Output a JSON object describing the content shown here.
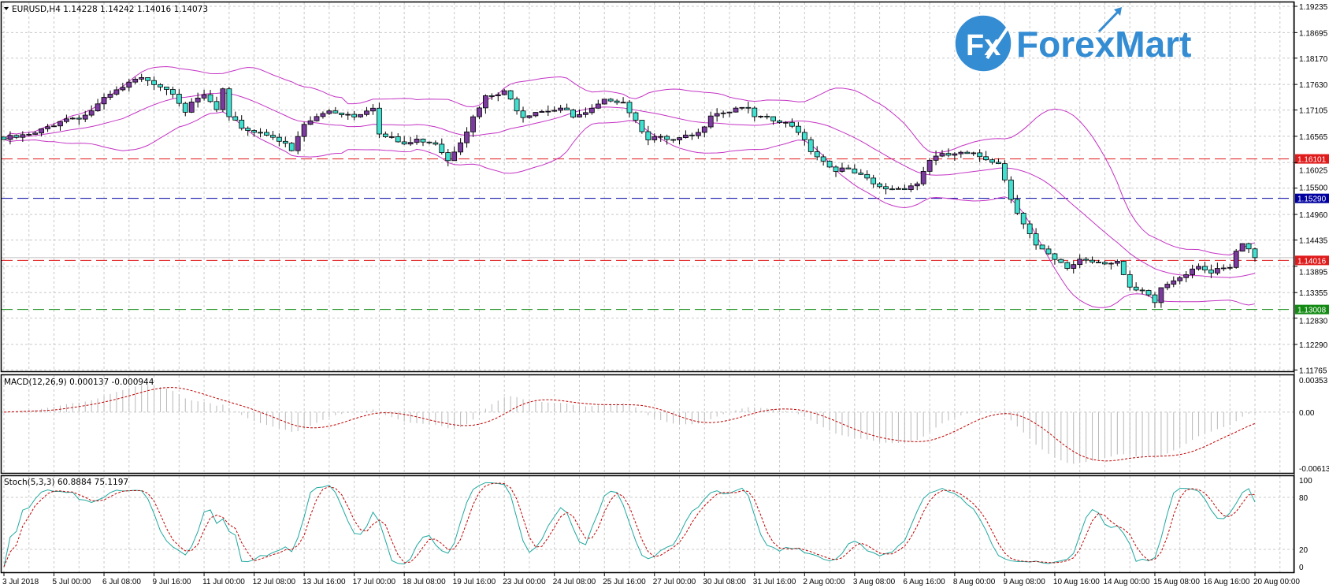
{
  "chart_data": {
    "type": "candlestick",
    "symbol_header": "EURUSD,H4  1.14228 1.14242 1.14016 1.14073",
    "price_axis_labels": [
      "1.19235",
      "1.18695",
      "1.18170",
      "1.17630",
      "1.17105",
      "1.16565",
      "1.16025",
      "1.15500",
      "1.14960",
      "1.14435",
      "1.13895",
      "1.13355",
      "1.12830",
      "1.12290",
      "1.11765"
    ],
    "price_ylim": [
      1.11765,
      1.19235
    ],
    "bar_count": 201,
    "close_waypoints": [
      [
        0,
        1.165
      ],
      [
        5,
        1.166
      ],
      [
        9,
        1.169
      ],
      [
        13,
        1.17
      ],
      [
        17,
        1.174
      ],
      [
        21,
        1.177
      ],
      [
        23,
        1.1775
      ],
      [
        27,
        1.175
      ],
      [
        29,
        1.171
      ],
      [
        32,
        1.174
      ],
      [
        34,
        1.171
      ],
      [
        35,
        1.175
      ],
      [
        36,
        1.169
      ],
      [
        39,
        1.167
      ],
      [
        43,
        1.166
      ],
      [
        46,
        1.1625
      ],
      [
        48,
        1.168
      ],
      [
        52,
        1.171
      ],
      [
        56,
        1.17
      ],
      [
        59,
        1.172
      ],
      [
        60,
        1.166
      ],
      [
        64,
        1.164
      ],
      [
        67,
        1.165
      ],
      [
        69,
        1.1645
      ],
      [
        71,
        1.161
      ],
      [
        73,
        1.165
      ],
      [
        77,
        1.1735
      ],
      [
        80,
        1.1745
      ],
      [
        83,
        1.17
      ],
      [
        85,
        1.171
      ],
      [
        89,
        1.1715
      ],
      [
        91,
        1.1695
      ],
      [
        93,
        1.17
      ],
      [
        97,
        1.1735
      ],
      [
        99,
        1.173
      ],
      [
        101,
        1.169
      ],
      [
        103,
        1.1655
      ],
      [
        107,
        1.1645
      ],
      [
        111,
        1.166
      ],
      [
        113,
        1.1705
      ],
      [
        116,
        1.171
      ],
      [
        118,
        1.172
      ],
      [
        120,
        1.1695
      ],
      [
        124,
        1.1685
      ],
      [
        127,
        1.167
      ],
      [
        129,
        1.163
      ],
      [
        132,
        1.1595
      ],
      [
        136,
        1.158
      ],
      [
        140,
        1.155
      ],
      [
        143,
        1.155
      ],
      [
        146,
        1.156
      ],
      [
        148,
        1.161
      ],
      [
        152,
        1.162
      ],
      [
        156,
        1.1615
      ],
      [
        159,
        1.1605
      ],
      [
        161,
        1.153
      ],
      [
        163,
        1.148
      ],
      [
        165,
        1.143
      ],
      [
        168,
        1.14
      ],
      [
        170,
        1.1385
      ],
      [
        172,
        1.1405
      ],
      [
        175,
        1.14
      ],
      [
        178,
        1.14
      ],
      [
        180,
        1.134
      ],
      [
        182,
        1.1335
      ],
      [
        184,
        1.1315
      ],
      [
        185,
        1.1345
      ],
      [
        188,
        1.137
      ],
      [
        191,
        1.1395
      ],
      [
        193,
        1.1375
      ],
      [
        196,
        1.1385
      ],
      [
        197,
        1.1415
      ],
      [
        198,
        1.1435
      ],
      [
        199,
        1.1422
      ],
      [
        200,
        1.1407
      ]
    ],
    "horizontal_levels": [
      {
        "price": 1.16101,
        "label": "1.16101",
        "color": "#e01b1b"
      },
      {
        "price": 1.1529,
        "label": "1.15290",
        "color": "#0000a0"
      },
      {
        "price": 1.14016,
        "label": "1.14016",
        "color": "#e01b1b"
      },
      {
        "price": 1.13008,
        "label": "1.13008",
        "color": "#138a13"
      }
    ],
    "bid_price": 1.14073,
    "indicators": {
      "bollinger": {
        "period": 20,
        "deviation": 2,
        "color": "#c433c4"
      },
      "macd": {
        "header": "MACD(12,26,9) 0.000137 -0.000944",
        "axis_labels": [
          "0.00353",
          "0.00",
          "-0.006132"
        ],
        "ylim": [
          -0.006132,
          0.00353
        ],
        "hist_color": "#b8b8b8",
        "signal_color": "#c00000"
      },
      "stochastic": {
        "header": "Stoch(5,3,3) 60.8884 75.1197",
        "axis_labels": [
          "100",
          "80",
          "20",
          "0"
        ],
        "levels": [
          80,
          20
        ],
        "main_color": "#20a8a0",
        "signal_color": "#c00000"
      }
    },
    "time_labels": [
      "3 Jul 2018",
      "5 Jul 00:00",
      "6 Jul 08:00",
      "9 Jul 16:00",
      "11 Jul 00:00",
      "12 Jul 08:00",
      "13 Jul 16:00",
      "17 Jul 00:00",
      "18 Jul 08:00",
      "19 Jul 16:00",
      "23 Jul 00:00",
      "24 Jul 08:00",
      "25 Jul 16:00",
      "27 Jul 00:00",
      "30 Jul 08:00",
      "31 Jul 16:00",
      "2 Aug 00:00",
      "3 Aug 08:00",
      "6 Aug 16:00",
      "8 Aug 00:00",
      "9 Aug 08:00",
      "10 Aug 16:00",
      "14 Aug 00:00",
      "15 Aug 08:00",
      "16 Aug 16:00",
      "20 Aug 00:00"
    ],
    "colors": {
      "bull": "#7a3a9e",
      "bear": "#40e0d0",
      "grid": "#c8c8c8"
    }
  },
  "logo": {
    "text": "ForexMart",
    "badge": "Fx",
    "color": "#2a86d1"
  }
}
